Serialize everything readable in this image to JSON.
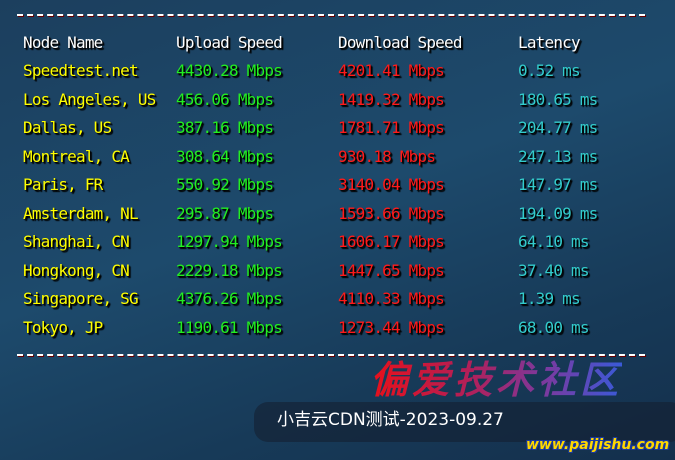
{
  "headers": {
    "node": "Node Name",
    "upload": "Upload Speed",
    "download": "Download Speed",
    "latency": "Latency"
  },
  "rows": [
    {
      "node": "Speedtest.net",
      "upload": "4430.28 Mbps",
      "download": "4201.41 Mbps",
      "latency": "0.52 ms"
    },
    {
      "node": "Los Angeles, US",
      "upload": "456.06 Mbps",
      "download": "1419.32 Mbps",
      "latency": "180.65 ms"
    },
    {
      "node": "Dallas, US",
      "upload": "387.16 Mbps",
      "download": "1781.71 Mbps",
      "latency": "204.77 ms"
    },
    {
      "node": "Montreal, CA",
      "upload": "308.64 Mbps",
      "download": "930.18 Mbps",
      "latency": "247.13 ms"
    },
    {
      "node": "Paris, FR",
      "upload": "550.92 Mbps",
      "download": "3140.04 Mbps",
      "latency": "147.97 ms"
    },
    {
      "node": "Amsterdam, NL",
      "upload": "295.87 Mbps",
      "download": "1593.66 Mbps",
      "latency": "194.09 ms"
    },
    {
      "node": "Shanghai, CN",
      "upload": "1297.94 Mbps",
      "download": "1606.17 Mbps",
      "latency": "64.10 ms"
    },
    {
      "node": "Hongkong, CN",
      "upload": "2229.18 Mbps",
      "download": "1447.65 Mbps",
      "latency": "37.40 ms"
    },
    {
      "node": "Singapore, SG",
      "upload": "4376.26 Mbps",
      "download": "4110.33 Mbps",
      "latency": "1.39 ms"
    },
    {
      "node": "Tokyo, JP",
      "upload": "1190.61 Mbps",
      "download": "1273.44 Mbps",
      "latency": "68.00 ms"
    }
  ],
  "caption": "小吉云CDN测试-2023-09.27",
  "watermark": {
    "text": "偏爱技术社区",
    "url": "www.paijishu.com"
  },
  "colors": {
    "node": "#ffff00",
    "upload": "#22ee22",
    "download": "#ff1a1a",
    "latency": "#33cccc"
  }
}
